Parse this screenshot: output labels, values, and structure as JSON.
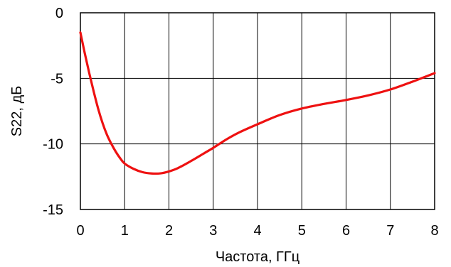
{
  "chart_data": {
    "type": "line",
    "xlabel": "Частота, ГГц",
    "ylabel": "S22, дБ",
    "xlim": [
      0,
      8
    ],
    "ylim": [
      -15,
      0
    ],
    "xticks": [
      "0",
      "1",
      "2",
      "3",
      "4",
      "5",
      "6",
      "7",
      "8"
    ],
    "yticks": [
      "0",
      "-5",
      "-10",
      "-15"
    ],
    "grid": true,
    "series": [
      {
        "color": "#ee1111",
        "x": [
          0.0,
          0.1,
          0.2,
          0.3,
          0.4,
          0.5,
          0.6,
          0.7,
          0.8,
          0.9,
          1.0,
          1.2,
          1.4,
          1.6,
          1.8,
          2.0,
          2.2,
          2.5,
          2.8,
          3.0,
          3.3,
          3.6,
          4.0,
          4.5,
          5.0,
          5.5,
          6.0,
          6.5,
          7.0,
          7.5,
          8.0
        ],
        "y": [
          -1.5,
          -3.1,
          -4.6,
          -6.0,
          -7.3,
          -8.4,
          -9.3,
          -10.0,
          -10.6,
          -11.1,
          -11.5,
          -11.9,
          -12.15,
          -12.25,
          -12.25,
          -12.1,
          -11.85,
          -11.3,
          -10.7,
          -10.3,
          -9.65,
          -9.1,
          -8.5,
          -7.8,
          -7.3,
          -6.95,
          -6.65,
          -6.3,
          -5.85,
          -5.25,
          -4.6
        ]
      }
    ]
  }
}
